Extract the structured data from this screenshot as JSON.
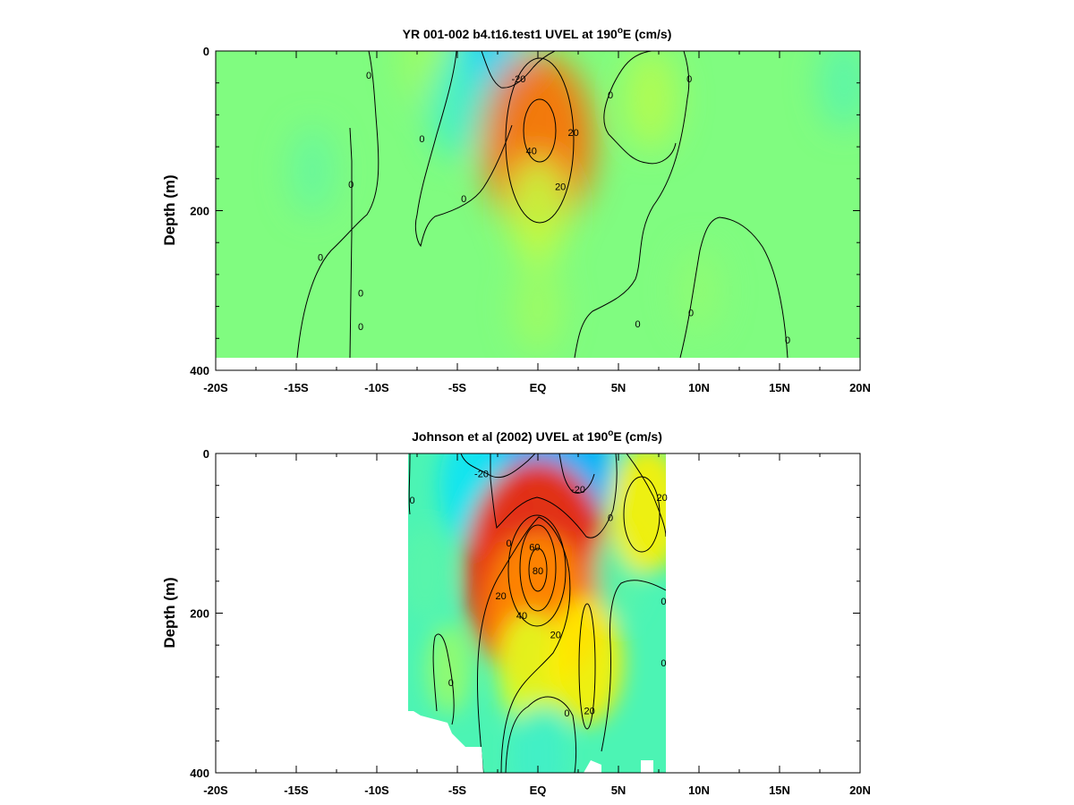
{
  "chart_data": [
    {
      "type": "heatmap",
      "title_main": "YR 001-002 b4.t16.test1 UVEL at 190",
      "title_sup": "o",
      "title_tail": "E (cm/s)",
      "ylabel": "Depth (m)",
      "xlabel": "",
      "x_ticks": [
        -20,
        -15,
        -10,
        -5,
        0,
        5,
        10,
        15,
        20
      ],
      "x_tick_labels": [
        "-20S",
        "-15S",
        "-10S",
        "-5S",
        "EQ",
        "5N",
        "10N",
        "15N",
        "20N"
      ],
      "y_ticks": [
        0,
        200,
        400
      ],
      "y_tick_labels": [
        "0",
        "200",
        "400"
      ],
      "xlim": [
        -20,
        20
      ],
      "ylim": [
        0,
        400
      ],
      "data_extent": {
        "x": [
          -19,
          20
        ],
        "depth": [
          0,
          385
        ]
      },
      "grid": false,
      "cells": [
        {
          "x": -14,
          "y": 150,
          "value": -4
        },
        {
          "x": -7,
          "y": 10,
          "value": 6
        },
        {
          "x": -3,
          "y": 25,
          "value": -22
        },
        {
          "x": -5,
          "y": 70,
          "value": -10
        },
        {
          "x": 0,
          "y": 115,
          "value": 46
        },
        {
          "x": 0,
          "y": 200,
          "value": 12
        },
        {
          "x": 0,
          "y": 320,
          "value": 6
        },
        {
          "x": 7,
          "y": 60,
          "value": 10
        },
        {
          "x": 10,
          "y": 300,
          "value": 3
        },
        {
          "x": 19,
          "y": 40,
          "value": -6
        }
      ],
      "contour_labels": [
        {
          "text": "0",
          "x": -10.5,
          "y": 30
        },
        {
          "text": "-20",
          "x": -1.2,
          "y": 35
        },
        {
          "text": "0",
          "x": 4.5,
          "y": 55
        },
        {
          "text": "0",
          "x": 9.4,
          "y": 35
        },
        {
          "text": "20",
          "x": 2.2,
          "y": 102
        },
        {
          "text": "40",
          "x": -0.4,
          "y": 125
        },
        {
          "text": "20",
          "x": 1.4,
          "y": 170
        },
        {
          "text": "0",
          "x": -7.2,
          "y": 110
        },
        {
          "text": "0",
          "x": -11.6,
          "y": 167
        },
        {
          "text": "0",
          "x": -4.6,
          "y": 185
        },
        {
          "text": "0",
          "x": -13.5,
          "y": 258
        },
        {
          "text": "0",
          "x": -11,
          "y": 303
        },
        {
          "text": "0",
          "x": -11,
          "y": 345
        },
        {
          "text": "0",
          "x": 6.2,
          "y": 342
        },
        {
          "text": "0",
          "x": 9.5,
          "y": 328
        },
        {
          "text": "0",
          "x": 15.5,
          "y": 362
        }
      ]
    },
    {
      "type": "heatmap",
      "title_main": "Johnson et al (2002) UVEL at 190",
      "title_sup": "o",
      "title_tail": "E (cm/s)",
      "ylabel": "Depth (m)",
      "xlabel": "",
      "x_ticks": [
        -20,
        -15,
        -10,
        -5,
        0,
        5,
        10,
        15,
        20
      ],
      "x_tick_labels": [
        "-20S",
        "-15S",
        "-10S",
        "-5S",
        "EQ",
        "5N",
        "10N",
        "15N",
        "20N"
      ],
      "y_ticks": [
        0,
        200,
        400
      ],
      "y_tick_labels": [
        "0",
        "200",
        "400"
      ],
      "xlim": [
        -20,
        20
      ],
      "ylim": [
        0,
        400
      ],
      "data_extent": {
        "x": [
          -8,
          8
        ],
        "depth": [
          0,
          400
        ]
      },
      "grid": false,
      "cells": [
        {
          "x": -1,
          "y": 20,
          "value": -28
        },
        {
          "x": 2,
          "y": 20,
          "value": -28
        },
        {
          "x": -4,
          "y": 40,
          "value": -18
        },
        {
          "x": -7,
          "y": 150,
          "value": -6
        },
        {
          "x": 0,
          "y": 150,
          "value": 68
        },
        {
          "x": 0,
          "y": 200,
          "value": 38
        },
        {
          "x": -0.5,
          "y": 270,
          "value": 16
        },
        {
          "x": 3,
          "y": 260,
          "value": 22
        },
        {
          "x": -5.5,
          "y": 270,
          "value": 4
        },
        {
          "x": 5,
          "y": 150,
          "value": -6
        },
        {
          "x": 6.8,
          "y": 70,
          "value": 22
        },
        {
          "x": 0,
          "y": 380,
          "value": -10
        }
      ],
      "contour_labels": [
        {
          "text": "-20",
          "x": -3.5,
          "y": 25
        },
        {
          "text": "-20",
          "x": 2.5,
          "y": 45
        },
        {
          "text": "20",
          "x": 7.7,
          "y": 55
        },
        {
          "text": "0",
          "x": -7.8,
          "y": 58
        },
        {
          "text": "0",
          "x": 4.5,
          "y": 80
        },
        {
          "text": "0",
          "x": -1.8,
          "y": 112
        },
        {
          "text": "60",
          "x": -0.2,
          "y": 117
        },
        {
          "text": "80",
          "x": 0,
          "y": 147
        },
        {
          "text": "20",
          "x": -2.3,
          "y": 178
        },
        {
          "text": "40",
          "x": -1,
          "y": 203
        },
        {
          "text": "20",
          "x": 1.1,
          "y": 227
        },
        {
          "text": "0",
          "x": 7.8,
          "y": 185
        },
        {
          "text": "0",
          "x": -5.4,
          "y": 287
        },
        {
          "text": "0",
          "x": 1.8,
          "y": 325
        },
        {
          "text": "20",
          "x": 3.2,
          "y": 322
        },
        {
          "text": "0",
          "x": 7.8,
          "y": 262
        }
      ]
    }
  ]
}
